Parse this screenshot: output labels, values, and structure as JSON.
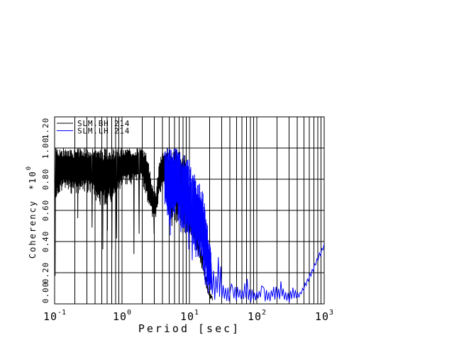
{
  "window": {
    "background": "#ffffff"
  },
  "chart_data": {
    "type": "line",
    "title": "",
    "xlabel": "Period [sec]",
    "ylabel": "Coherency",
    "ylabel_scale": {
      "prefix": "*10",
      "exponent": "0"
    },
    "xscale": "log",
    "xlim": [
      0.1,
      1000
    ],
    "ylim": [
      0.0,
      1.2
    ],
    "xticks": {
      "base": "10",
      "exponents": [
        "-1",
        "0",
        "1",
        "2",
        "3"
      ]
    },
    "yticks": [
      "0.00",
      "0.20",
      "0.40",
      "0.60",
      "0.80",
      "1.00",
      "1.20"
    ],
    "grid": {
      "vertical_log_minor": true,
      "horizontal_step": 0.2,
      "color": "#000000",
      "style": "solid full-length"
    },
    "legend": {
      "position": "top-left-inside",
      "entries": [
        {
          "label": "SLM.BH 214",
          "color": "#000000"
        },
        {
          "label": "SLM.LH 214",
          "color": "#0000ff"
        }
      ]
    },
    "series": [
      {
        "name": "SLM.BH 214",
        "color": "#000000",
        "seed": 7,
        "segments": [
          {
            "t0": 0.1,
            "t1": 1.0,
            "n": 260
          },
          {
            "t0": 1.0,
            "t1": 4.5,
            "n": 130
          },
          {
            "t0": 4.5,
            "t1": 10.0,
            "n": 80
          },
          {
            "t0": 10.0,
            "t1": 22.0,
            "n": 40
          }
        ],
        "envelope": [
          [
            0.1,
            1.0,
            0.62
          ],
          [
            0.13,
            1.0,
            0.72
          ],
          [
            0.2,
            1.0,
            0.7
          ],
          [
            0.3,
            1.0,
            0.72
          ],
          [
            0.5,
            1.0,
            0.62
          ],
          [
            0.7,
            1.0,
            0.65
          ],
          [
            1.0,
            1.0,
            0.75
          ],
          [
            2.0,
            1.0,
            0.78
          ],
          [
            2.4,
            0.97,
            0.62
          ],
          [
            2.8,
            0.78,
            0.55
          ],
          [
            3.2,
            0.72,
            0.55
          ],
          [
            3.6,
            0.95,
            0.68
          ],
          [
            4.2,
            1.0,
            0.72
          ],
          [
            5.0,
            1.0,
            0.56
          ],
          [
            7.0,
            1.0,
            0.5
          ],
          [
            9.0,
            0.96,
            0.44
          ],
          [
            11.0,
            0.55,
            0.42
          ],
          [
            13.0,
            0.48,
            0.34
          ],
          [
            16.0,
            0.3,
            0.18
          ],
          [
            18.0,
            0.16,
            0.08
          ],
          [
            20.0,
            0.08,
            0.03
          ],
          [
            22.0,
            0.05,
            0.02
          ]
        ],
        "spikes": [
          [
            0.102,
            0.18
          ],
          [
            0.22,
            0.55
          ],
          [
            0.36,
            0.49
          ],
          [
            0.52,
            0.35
          ],
          [
            0.61,
            0.47
          ],
          [
            0.71,
            0.35
          ],
          [
            0.83,
            0.42
          ],
          [
            1.5,
            0.32
          ],
          [
            1.8,
            0.45
          ],
          [
            3.0,
            0.45
          ],
          [
            5.5,
            0.5
          ],
          [
            8.0,
            0.45
          ]
        ]
      },
      {
        "name": "SLM.LH 214",
        "color": "#0000ff",
        "seed": 3,
        "segments": [
          {
            "t0": 4.3,
            "t1": 21.0,
            "n": 190
          },
          {
            "t0": 21.0,
            "t1": 1000.0,
            "n": 95
          }
        ],
        "envelope": [
          [
            4.3,
            1.0,
            0.6
          ],
          [
            5.0,
            1.0,
            0.5
          ],
          [
            6.0,
            1.0,
            0.54
          ],
          [
            7.0,
            1.0,
            0.5
          ],
          [
            8.0,
            0.98,
            0.46
          ],
          [
            9.5,
            0.95,
            0.4
          ],
          [
            11.0,
            0.88,
            0.32
          ],
          [
            13.0,
            0.8,
            0.3
          ],
          [
            15.0,
            0.76,
            0.28
          ],
          [
            17.0,
            0.66,
            0.12
          ],
          [
            19.0,
            0.46,
            0.06
          ],
          [
            21.0,
            0.33,
            0.03
          ],
          [
            24.0,
            0.22,
            0.02
          ],
          [
            28.0,
            0.17,
            0.02
          ],
          [
            33.0,
            0.12,
            0.01
          ],
          [
            40.0,
            0.1,
            0.01
          ],
          [
            50.0,
            0.12,
            0.02
          ],
          [
            60.0,
            0.1,
            0.01
          ],
          [
            70.0,
            0.16,
            0.02
          ],
          [
            80.0,
            0.1,
            0.01
          ],
          [
            100.0,
            0.08,
            0.01
          ],
          [
            120.0,
            0.12,
            0.02
          ],
          [
            150.0,
            0.08,
            0.01
          ],
          [
            180.0,
            0.13,
            0.02
          ],
          [
            210.0,
            0.1,
            0.02
          ],
          [
            230.0,
            0.15,
            0.03
          ],
          [
            260.0,
            0.08,
            0.01
          ],
          [
            300.0,
            0.07,
            0.01
          ],
          [
            350.0,
            0.11,
            0.03
          ],
          [
            400.0,
            0.08,
            0.02
          ],
          [
            450.0,
            0.08,
            0.05
          ],
          [
            550.0,
            0.16,
            0.12
          ],
          [
            650.0,
            0.22,
            0.18
          ],
          [
            750.0,
            0.28,
            0.24
          ],
          [
            850.0,
            0.33,
            0.29
          ],
          [
            1000.0,
            0.39,
            0.36
          ]
        ],
        "spikes": [
          [
            5.2,
            0.44
          ],
          [
            7.5,
            0.46
          ],
          [
            9.8,
            0.35
          ],
          [
            11.0,
            0.28
          ],
          [
            12.5,
            0.3
          ],
          [
            14.0,
            0.3
          ],
          [
            16.0,
            0.22
          ],
          [
            27.0,
            0.3
          ],
          [
            29.0,
            0.24
          ],
          [
            43.0,
            0.13
          ],
          [
            72.0,
            0.16
          ],
          [
            125.0,
            0.11
          ],
          [
            230.0,
            0.145
          ]
        ]
      }
    ]
  }
}
